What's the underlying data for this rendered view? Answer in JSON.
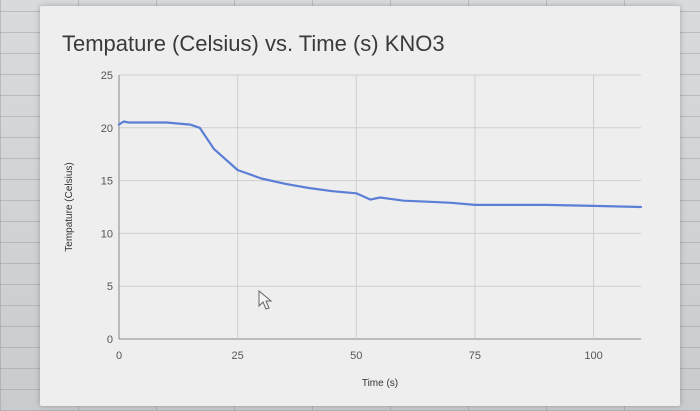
{
  "chart_data": {
    "type": "line",
    "title": "Tempature (Celsius) vs. Time (s) KNO3",
    "xlabel": "Time (s)",
    "ylabel": "Tempature (Celsius)",
    "xlim": [
      0,
      110
    ],
    "ylim": [
      0,
      25
    ],
    "x_ticks": [
      0,
      25,
      50,
      75,
      100
    ],
    "y_ticks": [
      0,
      5,
      10,
      15,
      20,
      25
    ],
    "grid": true,
    "legend": "none",
    "series_color": "#5b7fd6",
    "series": [
      {
        "x": [
          0,
          1,
          2,
          5,
          10,
          15,
          17,
          20,
          25,
          30,
          35,
          40,
          45,
          50,
          53,
          55,
          60,
          65,
          70,
          75,
          80,
          90,
          100,
          110
        ],
        "y": [
          20.3,
          20.6,
          20.5,
          20.5,
          20.5,
          20.3,
          20.0,
          18.0,
          16.0,
          15.2,
          14.7,
          14.3,
          14.0,
          13.8,
          13.2,
          13.4,
          13.1,
          13.0,
          12.9,
          12.7,
          12.7,
          12.7,
          12.6,
          12.5
        ]
      }
    ]
  }
}
